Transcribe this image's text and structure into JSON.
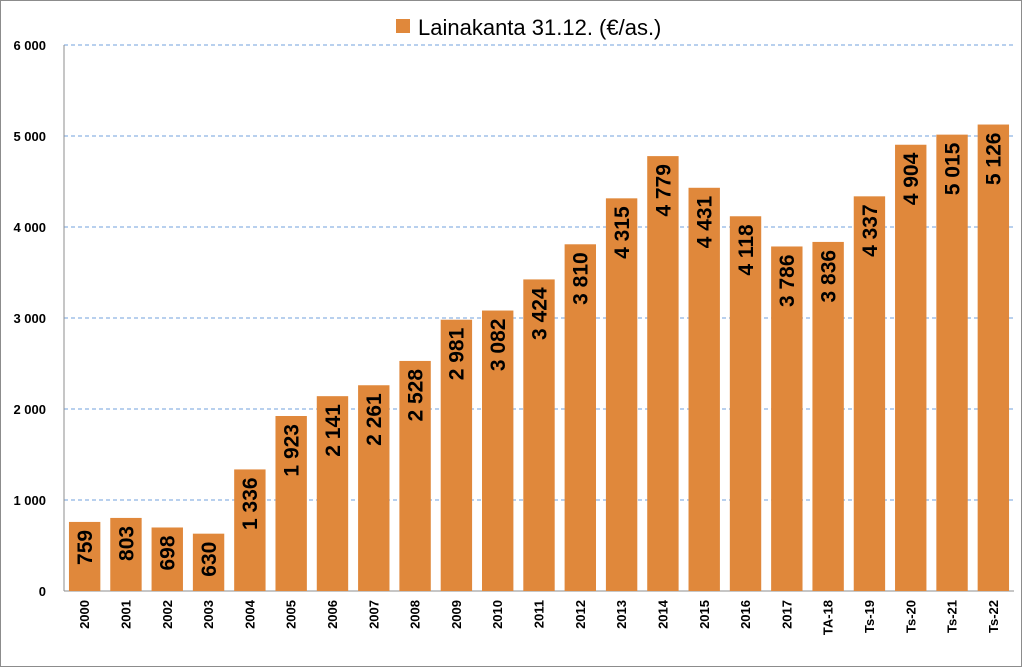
{
  "chart_data": {
    "type": "bar",
    "categories": [
      "2000",
      "2001",
      "2002",
      "2003",
      "2004",
      "2005",
      "2006",
      "2007",
      "2008",
      "2009",
      "2010",
      "2011",
      "2012",
      "2013",
      "2014",
      "2015",
      "2016",
      "2017",
      "TA-18",
      "Ts-19",
      "Ts-20",
      "Ts-21",
      "Ts-22"
    ],
    "series": [
      {
        "name": "Lainakanta 31.12. (€/as.)",
        "color": "#e0883b",
        "values": [
          759,
          803,
          698,
          630,
          1336,
          1923,
          2141,
          2261,
          2528,
          2981,
          3082,
          3424,
          3810,
          4315,
          4779,
          4431,
          4118,
          3786,
          3836,
          4337,
          4904,
          5015,
          5126
        ],
        "value_labels": [
          "759",
          "803",
          "698",
          "630",
          "1 336",
          "1 923",
          "2 141",
          "2 261",
          "2 528",
          "2 981",
          "3 082",
          "3 424",
          "3 810",
          "4 315",
          "4 779",
          "4 431",
          "4 118",
          "3 786",
          "3 836",
          "4 337",
          "4 904",
          "5 015",
          "5 126"
        ]
      }
    ],
    "ylim": [
      0,
      6000
    ],
    "yticks": [
      "0",
      "1 000",
      "2 000",
      "3 000",
      "4 000",
      "5 000",
      "6 000"
    ],
    "grid": true,
    "gridline_style": "dashed",
    "gridline_color": "#8eb4e3",
    "legend_position": "top",
    "title": "",
    "xlabel": "",
    "ylabel": ""
  }
}
